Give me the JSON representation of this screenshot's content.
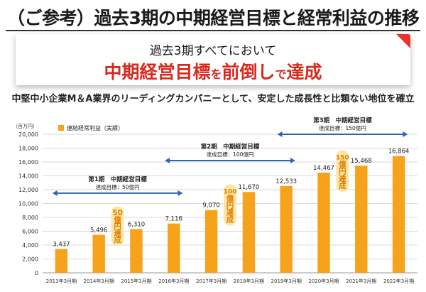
{
  "header": {
    "title": "（ご参考）過去3期の中期経営目標と経常利益の推移"
  },
  "banner": {
    "line1": "過去3期すべてにおいて",
    "line2_parts": [
      "中期経営目標",
      "を",
      "前倒し",
      "で",
      "達成"
    ]
  },
  "subtitle": "中堅中小企業M＆A業界のリーディングカンパニーとして、安定した成長性と比類ない地位を確立",
  "colors": {
    "bar": "#f7a21b",
    "arrow": "#2e63b8",
    "badge": "#fde7a6",
    "badge_text": "#e07d00",
    "accent_red": "#d62a1f",
    "grid": "#d9d9d9"
  },
  "chart_data": {
    "type": "bar",
    "unit_label": "（百万円）",
    "legend": "連結経常利益（実績）",
    "categories": [
      "2013年3月期",
      "2014年3月期",
      "2015年3月期",
      "2016年3月期",
      "2017年3月期",
      "2018年3月期",
      "2019年3月期",
      "2020年3月期",
      "2021年3月期",
      "2022年3月期"
    ],
    "values": [
      3437,
      5496,
      6310,
      7116,
      9070,
      11670,
      12533,
      14467,
      15468,
      16864
    ],
    "value_labels": [
      "3,437",
      "5,496",
      "6,310",
      "7,116",
      "9,070",
      "11,670",
      "12,533",
      "14,467",
      "15,468",
      "16,864"
    ],
    "ylim": [
      0,
      20000
    ],
    "yticks": [
      0,
      2000,
      4000,
      6000,
      8000,
      10000,
      12000,
      14000,
      16000,
      18000,
      20000
    ],
    "ytick_labels": [
      "0",
      "2,000",
      "4,000",
      "6,000",
      "8,000",
      "10,000",
      "12,000",
      "14,000",
      "16,000",
      "18,000",
      "20,000"
    ],
    "grid": true,
    "periods": [
      {
        "name": "第1期　中期経営目標",
        "target": "達成目標：50億円",
        "start": 0,
        "end": 3,
        "level": 11500
      },
      {
        "name": "第2期　中期経営目標",
        "target": "達成目標：100億円",
        "start": 3,
        "end": 6,
        "level": 16200
      },
      {
        "name": "第3期　中期経営目標",
        "target": "達成目標：150億円",
        "start": 6,
        "end": 9,
        "level": 20000
      }
    ],
    "badges": [
      {
        "lines": [
          "50",
          "億",
          "円",
          "達",
          "成"
        ],
        "category": 2,
        "from": 9600,
        "to": 3900
      },
      {
        "lines": [
          "100",
          "億",
          "円",
          "達",
          "成"
        ],
        "category": 5,
        "from": 12800,
        "to": 6800
      },
      {
        "lines": [
          "150",
          "億",
          "円",
          "達",
          "成"
        ],
        "category": 8,
        "from": 17700,
        "to": 11700
      }
    ]
  }
}
